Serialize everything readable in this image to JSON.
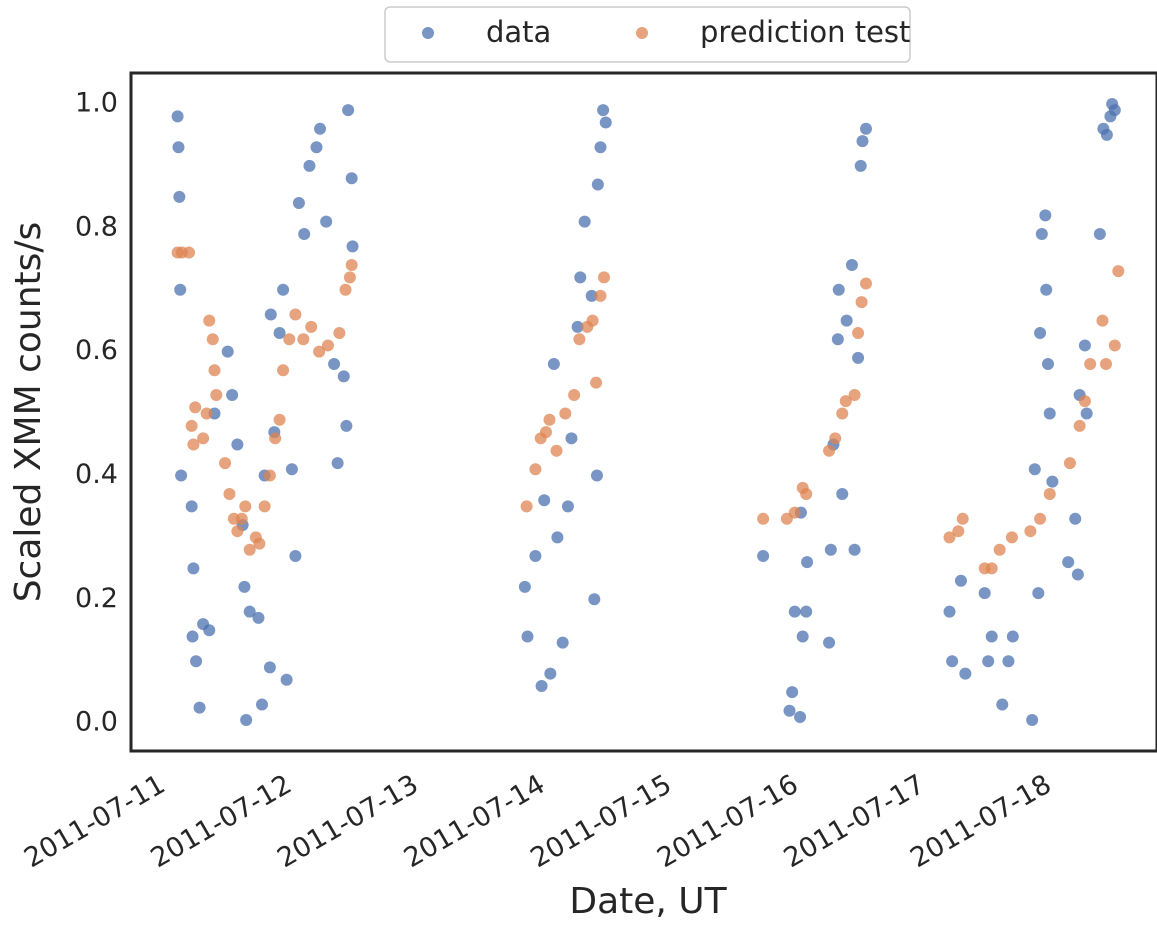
{
  "chart_data": {
    "type": "scatter",
    "x_label": "Date, UT",
    "y_label": "Scaled XMM counts/s",
    "xlim": [
      "2011-07-10 19:00",
      "2011-07-18 21:30"
    ],
    "xticks": [
      "2011-07-11",
      "2011-07-12",
      "2011-07-13",
      "2011-07-14",
      "2011-07-15",
      "2011-07-16",
      "2011-07-17",
      "2011-07-18"
    ],
    "ylim": [
      -0.045,
      1.05
    ],
    "yticks": [
      {
        "value": 0,
        "label": "0.0"
      },
      0.2,
      0.4,
      0.6,
      0.8,
      {
        "value": 1,
        "label": "1.0"
      }
    ],
    "legend": "upper center outside",
    "grid": false,
    "series": [
      {
        "name": "data",
        "color": "#4c72b0",
        "x": [
          "2011-07-11 03:50",
          "2011-07-11 04:00",
          "2011-07-11 04:10",
          "2011-07-11 04:20",
          "2011-07-11 04:30",
          "2011-07-11 06:30",
          "2011-07-11 06:50",
          "2011-07-11 06:40",
          "2011-07-11 07:20",
          "2011-07-11 08:00",
          "2011-07-11 08:40",
          "2011-07-11 09:50",
          "2011-07-11 10:50",
          "2011-07-11 13:20",
          "2011-07-11 14:10",
          "2011-07-11 15:10",
          "2011-07-11 16:10",
          "2011-07-11 16:30",
          "2011-07-11 16:50",
          "2011-07-11 17:30",
          "2011-07-11 19:10",
          "2011-07-11 19:50",
          "2011-07-11 20:20",
          "2011-07-11 21:20",
          "2011-07-11 21:30",
          "2011-07-11 22:10",
          "2011-07-11 23:10",
          "2011-07-11 23:50",
          "2011-07-12 00:30",
          "2011-07-12 01:30",
          "2011-07-12 02:10",
          "2011-07-12 02:50",
          "2011-07-12 03:50",
          "2011-07-12 04:50",
          "2011-07-12 06:10",
          "2011-07-12 06:50",
          "2011-07-12 08:00",
          "2011-07-12 09:30",
          "2011-07-12 10:10",
          "2011-07-12 11:20",
          "2011-07-12 11:50",
          "2011-07-12 12:10",
          "2011-07-12 12:50",
          "2011-07-12 13:00",
          "2011-07-13 21:40",
          "2011-07-13 22:10",
          "2011-07-13 23:40",
          "2011-07-14 00:50",
          "2011-07-14 01:20",
          "2011-07-14 02:30",
          "2011-07-14 03:10",
          "2011-07-14 03:50",
          "2011-07-14 04:50",
          "2011-07-14 05:50",
          "2011-07-14 06:30",
          "2011-07-14 07:40",
          "2011-07-14 08:10",
          "2011-07-14 09:00",
          "2011-07-14 10:20",
          "2011-07-14 10:50",
          "2011-07-14 11:20",
          "2011-07-14 11:30",
          "2011-07-14 12:00",
          "2011-07-14 12:30",
          "2011-07-14 13:00",
          "2011-07-15 18:50",
          "2011-07-15 23:50",
          "2011-07-16 00:20",
          "2011-07-16 00:50",
          "2011-07-16 01:50",
          "2011-07-16 02:00",
          "2011-07-16 02:20",
          "2011-07-16 03:00",
          "2011-07-16 03:10",
          "2011-07-16 07:20",
          "2011-07-16 07:40",
          "2011-07-16 08:10",
          "2011-07-16 09:00",
          "2011-07-16 09:10",
          "2011-07-16 09:50",
          "2011-07-16 10:40",
          "2011-07-16 11:40",
          "2011-07-16 12:10",
          "2011-07-16 12:50",
          "2011-07-16 13:20",
          "2011-07-16 13:40",
          "2011-07-16 14:20",
          "2011-07-17 06:10",
          "2011-07-17 06:40",
          "2011-07-17 08:20",
          "2011-07-17 09:10",
          "2011-07-17 12:50",
          "2011-07-17 13:30",
          "2011-07-17 14:10",
          "2011-07-17 16:10",
          "2011-07-17 17:20",
          "2011-07-17 18:10",
          "2011-07-17 21:50",
          "2011-07-17 22:20",
          "2011-07-17 23:00",
          "2011-07-17 23:20",
          "2011-07-17 23:40",
          "2011-07-18 00:20",
          "2011-07-18 00:30",
          "2011-07-18 00:50",
          "2011-07-18 01:10",
          "2011-07-18 01:40",
          "2011-07-18 04:40",
          "2011-07-18 06:00",
          "2011-07-18 06:30",
          "2011-07-18 06:50",
          "2011-07-18 07:50",
          "2011-07-18 08:10",
          "2011-07-18 10:40",
          "2011-07-18 11:20",
          "2011-07-18 12:00",
          "2011-07-18 12:40",
          "2011-07-18 13:00",
          "2011-07-18 13:30"
        ],
        "values": [
          0.98,
          0.93,
          0.85,
          0.7,
          0.4,
          0.35,
          0.25,
          0.14,
          0.1,
          0.025,
          0.16,
          0.15,
          0.5,
          0.6,
          0.53,
          0.45,
          0.32,
          0.22,
          0.005,
          0.18,
          0.17,
          0.03,
          0.4,
          0.09,
          0.66,
          0.47,
          0.63,
          0.7,
          0.07,
          0.41,
          0.27,
          0.84,
          0.79,
          0.9,
          0.93,
          0.96,
          0.81,
          0.58,
          0.42,
          0.56,
          0.48,
          0.99,
          0.88,
          0.77,
          0.22,
          0.14,
          0.27,
          0.06,
          0.36,
          0.08,
          0.58,
          0.3,
          0.13,
          0.35,
          0.46,
          0.64,
          0.72,
          0.81,
          0.69,
          0.2,
          0.4,
          0.87,
          0.93,
          0.99,
          0.97,
          0.27,
          0.02,
          0.05,
          0.18,
          0.01,
          0.34,
          0.14,
          0.18,
          0.26,
          0.13,
          0.28,
          0.45,
          0.62,
          0.7,
          0.37,
          0.65,
          0.74,
          0.28,
          0.59,
          0.9,
          0.94,
          0.96,
          0.18,
          0.1,
          0.23,
          0.08,
          0.21,
          0.1,
          0.14,
          0.03,
          0.1,
          0.14,
          0.005,
          0.41,
          0.21,
          0.63,
          0.79,
          0.82,
          0.7,
          0.58,
          0.5,
          0.39,
          0.26,
          0.33,
          0.24,
          0.53,
          0.61,
          0.5,
          0.79,
          0.96,
          0.95,
          0.98,
          1.0,
          0.99
        ]
      },
      {
        "name": "prediction test",
        "color": "#dd8452",
        "x": [
          "2011-07-11 03:50",
          "2011-07-11 04:40",
          "2011-07-11 06:00",
          "2011-07-11 06:30",
          "2011-07-11 06:50",
          "2011-07-11 07:10",
          "2011-07-11 08:40",
          "2011-07-11 09:20",
          "2011-07-11 09:50",
          "2011-07-11 10:30",
          "2011-07-11 10:50",
          "2011-07-11 11:10",
          "2011-07-11 12:50",
          "2011-07-11 13:40",
          "2011-07-11 14:30",
          "2011-07-11 15:10",
          "2011-07-11 16:00",
          "2011-07-11 16:40",
          "2011-07-11 17:30",
          "2011-07-11 18:40",
          "2011-07-11 19:20",
          "2011-07-11 20:20",
          "2011-07-11 21:20",
          "2011-07-11 22:20",
          "2011-07-11 23:10",
          "2011-07-11 23:50",
          "2011-07-12 01:00",
          "2011-07-12 02:10",
          "2011-07-12 03:40",
          "2011-07-12 05:10",
          "2011-07-12 06:40",
          "2011-07-12 08:20",
          "2011-07-12 10:30",
          "2011-07-12 11:40",
          "2011-07-12 12:30",
          "2011-07-12 12:50",
          "2011-07-13 22:00",
          "2011-07-13 23:40",
          "2011-07-14 00:40",
          "2011-07-14 01:40",
          "2011-07-14 02:20",
          "2011-07-14 03:40",
          "2011-07-14 05:20",
          "2011-07-14 07:00",
          "2011-07-14 08:00",
          "2011-07-14 09:30",
          "2011-07-14 10:30",
          "2011-07-14 11:10",
          "2011-07-14 12:00",
          "2011-07-14 12:40",
          "2011-07-15 18:50",
          "2011-07-15 23:20",
          "2011-07-16 00:50",
          "2011-07-16 02:20",
          "2011-07-16 03:00",
          "2011-07-16 07:20",
          "2011-07-16 08:30",
          "2011-07-16 09:50",
          "2011-07-16 10:30",
          "2011-07-16 12:10",
          "2011-07-16 12:50",
          "2011-07-16 13:30",
          "2011-07-16 14:20",
          "2011-07-17 06:10",
          "2011-07-17 07:50",
          "2011-07-17 08:40",
          "2011-07-17 12:50",
          "2011-07-17 14:10",
          "2011-07-17 15:40",
          "2011-07-17 18:00",
          "2011-07-17 21:30",
          "2011-07-17 23:20",
          "2011-07-18 01:10",
          "2011-07-18 05:00",
          "2011-07-18 06:50",
          "2011-07-18 07:50",
          "2011-07-18 08:50",
          "2011-07-18 11:10",
          "2011-07-18 11:50",
          "2011-07-18 13:30",
          "2011-07-18 14:10"
        ],
        "values": [
          0.76,
          0.76,
          0.76,
          0.48,
          0.45,
          0.51,
          0.46,
          0.5,
          0.65,
          0.62,
          0.57,
          0.53,
          0.42,
          0.37,
          0.33,
          0.31,
          0.33,
          0.35,
          0.28,
          0.3,
          0.29,
          0.35,
          0.4,
          0.46,
          0.49,
          0.57,
          0.62,
          0.66,
          0.62,
          0.64,
          0.6,
          0.61,
          0.63,
          0.7,
          0.72,
          0.74,
          0.35,
          0.41,
          0.46,
          0.47,
          0.49,
          0.44,
          0.5,
          0.53,
          0.62,
          0.64,
          0.65,
          0.55,
          0.69,
          0.72,
          0.33,
          0.33,
          0.34,
          0.38,
          0.37,
          0.44,
          0.46,
          0.5,
          0.52,
          0.53,
          0.63,
          0.68,
          0.71,
          0.3,
          0.31,
          0.33,
          0.25,
          0.25,
          0.28,
          0.3,
          0.31,
          0.33,
          0.37,
          0.42,
          0.48,
          0.52,
          0.58,
          0.65,
          0.58,
          0.61,
          0.73
        ]
      }
    ]
  }
}
